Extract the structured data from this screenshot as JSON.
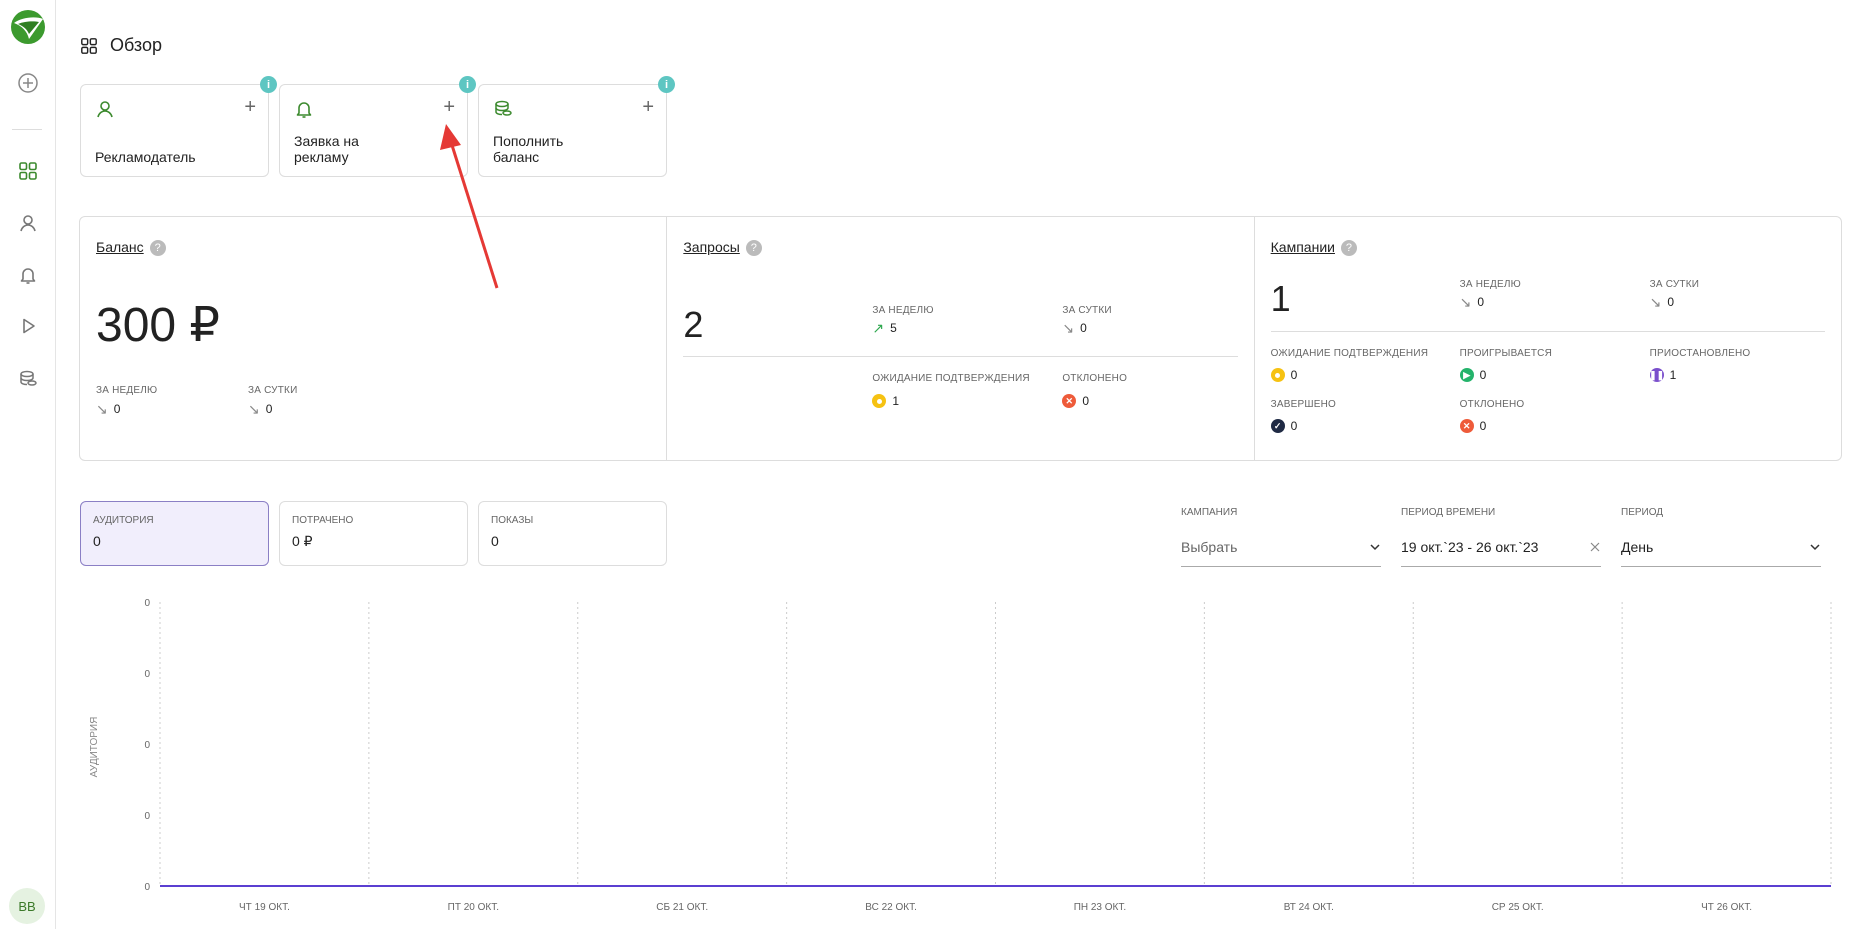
{
  "sidebar": {
    "avatar_initials": "BB"
  },
  "header": {
    "title": "Обзор"
  },
  "quick_actions": [
    {
      "label": "Рекламодатель",
      "icon": "user-icon",
      "badge": "i"
    },
    {
      "label": "Заявка на\nрекламу",
      "icon": "bell-icon",
      "badge": "i"
    },
    {
      "label": "Пополнить\nбаланс",
      "icon": "coins-icon",
      "badge": "i"
    }
  ],
  "stats": {
    "balance": {
      "title": "Баланс",
      "value": "300 ₽",
      "week_label": "ЗА НЕДЕЛЮ",
      "week_value": "0",
      "day_label": "ЗА СУТКИ",
      "day_value": "0"
    },
    "requests": {
      "title": "Запросы",
      "value": "2",
      "week_label": "ЗА НЕДЕЛЮ",
      "week_value": "5",
      "day_label": "ЗА СУТКИ",
      "day_value": "0",
      "pending_label": "ОЖИДАНИЕ ПОДТВЕРЖДЕНИЯ",
      "pending_value": "1",
      "rejected_label": "ОТКЛОНЕНО",
      "rejected_value": "0"
    },
    "campaigns": {
      "title": "Кампании",
      "value": "1",
      "week_label": "ЗА НЕДЕЛЮ",
      "week_value": "0",
      "day_label": "ЗА СУТКИ",
      "day_value": "0",
      "pending_label": "ОЖИДАНИЕ ПОДТВЕРЖДЕНИЯ",
      "pending_value": "0",
      "losing_label": "ПРОИГРЫВАЕТСЯ",
      "losing_value": "0",
      "paused_label": "ПРИОСТАНОВЛЕНО",
      "paused_value": "1",
      "done_label": "ЗАВЕРШЕНО",
      "done_value": "0",
      "rejected_label": "ОТКЛОНЕНО",
      "rejected_value": "0"
    }
  },
  "metric_tabs": [
    {
      "label": "АУДИТОРИЯ",
      "value": "0",
      "active": true
    },
    {
      "label": "ПОТРАЧЕНО",
      "value": "0 ₽",
      "active": false
    },
    {
      "label": "ПОКАЗЫ",
      "value": "0",
      "active": false
    }
  ],
  "filters": {
    "campaign_label": "КАМПАНИЯ",
    "campaign_placeholder": "Выбрать",
    "range_label": "ПЕРИОД ВРЕМЕНИ",
    "range_value": "19 окт.`23 - 26 окт.`23",
    "period_label": "ПЕРИОД",
    "period_value": "День"
  },
  "colors": {
    "brand_green": "#3c8a2e",
    "line_purple": "#5b3fd1",
    "annotation_red": "#e53935"
  },
  "chart_data": {
    "type": "line",
    "ylabel": "АУДИТОРИЯ",
    "y_ticks": [
      "0",
      "0",
      "0",
      "0",
      "0"
    ],
    "categories": [
      "ЧТ 19 ОКТ.",
      "ПТ 20 ОКТ.",
      "СБ 21 ОКТ.",
      "ВС 22 ОКТ.",
      "ПН 23 ОКТ.",
      "ВТ 24 ОКТ.",
      "СР 25 ОКТ.",
      "ЧТ 26 ОКТ."
    ],
    "series": [
      {
        "values": [
          0,
          0,
          0,
          0,
          0,
          0,
          0,
          0
        ]
      }
    ],
    "grid": "vertical dashed"
  }
}
